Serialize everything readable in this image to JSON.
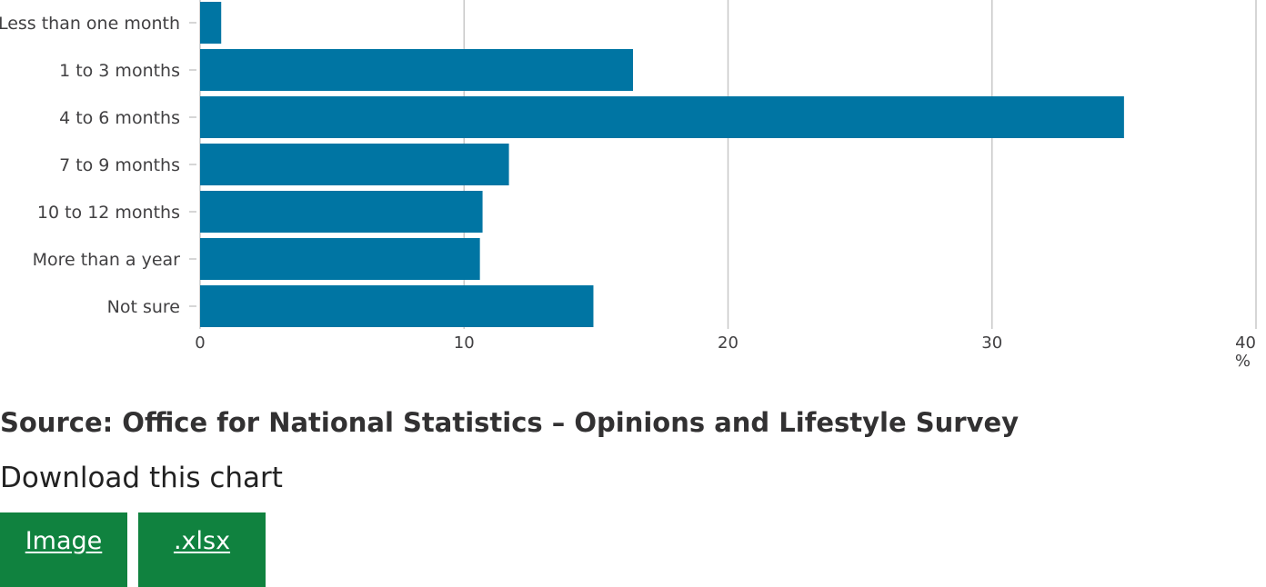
{
  "chart_data": {
    "type": "bar",
    "orientation": "horizontal",
    "categories": [
      "Less than one month",
      "1 to 3 months",
      "4 to 6 months",
      "7 to 9 months",
      "10 to 12 months",
      "More than a year",
      "Not sure"
    ],
    "values": [
      0.8,
      16.4,
      35.0,
      11.7,
      10.7,
      10.6,
      14.9
    ],
    "xticks": [
      "0",
      "10",
      "20",
      "30",
      "40"
    ],
    "xlim": [
      0,
      40
    ],
    "xunit": "%",
    "grid": true,
    "bar_color": "#0075a3",
    "grid_color": "#c8c8c8"
  },
  "source": "Source: Office for National Statistics – Opinions and Lifestyle Survey",
  "download": {
    "heading": "Download this chart",
    "buttons": [
      {
        "label": "Image"
      },
      {
        "label": ".xlsx"
      }
    ],
    "button_color": "#10823f"
  }
}
